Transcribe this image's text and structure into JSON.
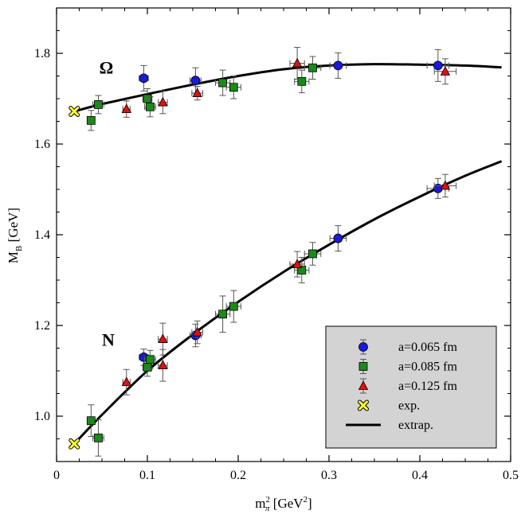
{
  "chart_data": {
    "type": "scatter",
    "xlabel": {
      "main": "m",
      "sub": "π",
      "sup": "2",
      "rest": " [GeV",
      "sup2": "2",
      "end": "]"
    },
    "ylabel": {
      "main": "M",
      "sub": "B",
      "rest": " [GeV]"
    },
    "xlim": [
      0,
      0.5
    ],
    "ylim": [
      0.9,
      1.9
    ],
    "xticks": [
      "0",
      "0.1",
      "0.2",
      "0.3",
      "0.4",
      "0.5"
    ],
    "yticks": [
      "1.0",
      "1.2",
      "1.4",
      "1.6",
      "1.8"
    ],
    "annotations": [
      {
        "text": "Ω",
        "x": 0.047,
        "y": 1.755
      },
      {
        "text": "N",
        "x": 0.05,
        "y": 1.155
      }
    ],
    "legend_position": "bottom-right",
    "series": [
      {
        "name": "a=0.065 fm",
        "marker": "circle",
        "color": "#1a1adb",
        "points": [
          {
            "x": 0.096,
            "y": 1.745,
            "ey": 0.028,
            "ex": 0.005
          },
          {
            "x": 0.153,
            "y": 1.74,
            "ey": 0.028,
            "ex": 0.006
          },
          {
            "x": 0.31,
            "y": 1.773,
            "ey": 0.028,
            "ex": 0.009
          },
          {
            "x": 0.42,
            "y": 1.773,
            "ey": 0.035,
            "ex": 0.012
          },
          {
            "x": 0.096,
            "y": 1.13,
            "ey": 0.018,
            "ex": 0.005
          },
          {
            "x": 0.153,
            "y": 1.178,
            "ey": 0.025,
            "ex": 0.006
          },
          {
            "x": 0.31,
            "y": 1.392,
            "ey": 0.028,
            "ex": 0.009
          },
          {
            "x": 0.42,
            "y": 1.502,
            "ey": 0.022,
            "ex": 0.012
          }
        ]
      },
      {
        "name": "a=0.085 fm",
        "marker": "square",
        "color": "#1a8a1a",
        "points": [
          {
            "x": 0.038,
            "y": 1.652,
            "ey": 0.022,
            "ex": 0.004
          },
          {
            "x": 0.046,
            "y": 1.687,
            "ey": 0.02,
            "ex": 0.006
          },
          {
            "x": 0.1,
            "y": 1.7,
            "ey": 0.022,
            "ex": 0.005
          },
          {
            "x": 0.103,
            "y": 1.682,
            "ey": 0.022,
            "ex": 0.006
          },
          {
            "x": 0.183,
            "y": 1.735,
            "ey": 0.028,
            "ex": 0.008
          },
          {
            "x": 0.195,
            "y": 1.725,
            "ey": 0.025,
            "ex": 0.008
          },
          {
            "x": 0.27,
            "y": 1.738,
            "ey": 0.025,
            "ex": 0.008
          },
          {
            "x": 0.282,
            "y": 1.768,
            "ey": 0.025,
            "ex": 0.009
          },
          {
            "x": 0.038,
            "y": 0.99,
            "ey": 0.035,
            "ex": 0.004
          },
          {
            "x": 0.046,
            "y": 0.952,
            "ey": 0.04,
            "ex": 0.006
          },
          {
            "x": 0.1,
            "y": 1.108,
            "ey": 0.02,
            "ex": 0.005
          },
          {
            "x": 0.103,
            "y": 1.125,
            "ey": 0.02,
            "ex": 0.006
          },
          {
            "x": 0.183,
            "y": 1.225,
            "ey": 0.04,
            "ex": 0.008
          },
          {
            "x": 0.195,
            "y": 1.242,
            "ey": 0.035,
            "ex": 0.008
          },
          {
            "x": 0.27,
            "y": 1.322,
            "ey": 0.028,
            "ex": 0.008
          },
          {
            "x": 0.282,
            "y": 1.358,
            "ey": 0.025,
            "ex": 0.009
          }
        ]
      },
      {
        "name": "a=0.125 fm",
        "marker": "triangle",
        "color": "#e01010",
        "points": [
          {
            "x": 0.077,
            "y": 1.677,
            "ey": 0.018,
            "ex": 0.004
          },
          {
            "x": 0.117,
            "y": 1.692,
            "ey": 0.025,
            "ex": 0.005
          },
          {
            "x": 0.155,
            "y": 1.712,
            "ey": 0.015,
            "ex": 0.006
          },
          {
            "x": 0.265,
            "y": 1.778,
            "ey": 0.035,
            "ex": 0.008
          },
          {
            "x": 0.428,
            "y": 1.76,
            "ey": 0.028,
            "ex": 0.012
          },
          {
            "x": 0.077,
            "y": 1.075,
            "ey": 0.028,
            "ex": 0.004
          },
          {
            "x": 0.117,
            "y": 1.112,
            "ey": 0.035,
            "ex": 0.005
          },
          {
            "x": 0.117,
            "y": 1.17,
            "ey": 0.035,
            "ex": 0.005
          },
          {
            "x": 0.155,
            "y": 1.185,
            "ey": 0.025,
            "ex": 0.006
          },
          {
            "x": 0.265,
            "y": 1.335,
            "ey": 0.028,
            "ex": 0.008
          },
          {
            "x": 0.428,
            "y": 1.508,
            "ey": 0.025,
            "ex": 0.012
          }
        ]
      },
      {
        "name": "exp.",
        "marker": "cross",
        "color": "#ffff33",
        "points": [
          {
            "x": 0.0195,
            "y": 1.672
          },
          {
            "x": 0.0195,
            "y": 0.939
          }
        ]
      },
      {
        "name": "extrap.",
        "marker": "line",
        "color": "#000000",
        "curves": [
          {
            "x": [
              0.0195,
              0.05,
              0.1,
              0.15,
              0.2,
              0.25,
              0.3,
              0.35,
              0.4,
              0.45,
              0.49
            ],
            "y": [
              1.672,
              1.688,
              1.71,
              1.731,
              1.75,
              1.765,
              1.773,
              1.776,
              1.775,
              1.773,
              1.769
            ]
          },
          {
            "x": [
              0.0195,
              0.05,
              0.1,
              0.15,
              0.2,
              0.25,
              0.3,
              0.35,
              0.4,
              0.45,
              0.49
            ],
            "y": [
              0.939,
              1.003,
              1.1,
              1.18,
              1.252,
              1.318,
              1.378,
              1.434,
              1.484,
              1.53,
              1.562
            ]
          }
        ]
      }
    ]
  }
}
